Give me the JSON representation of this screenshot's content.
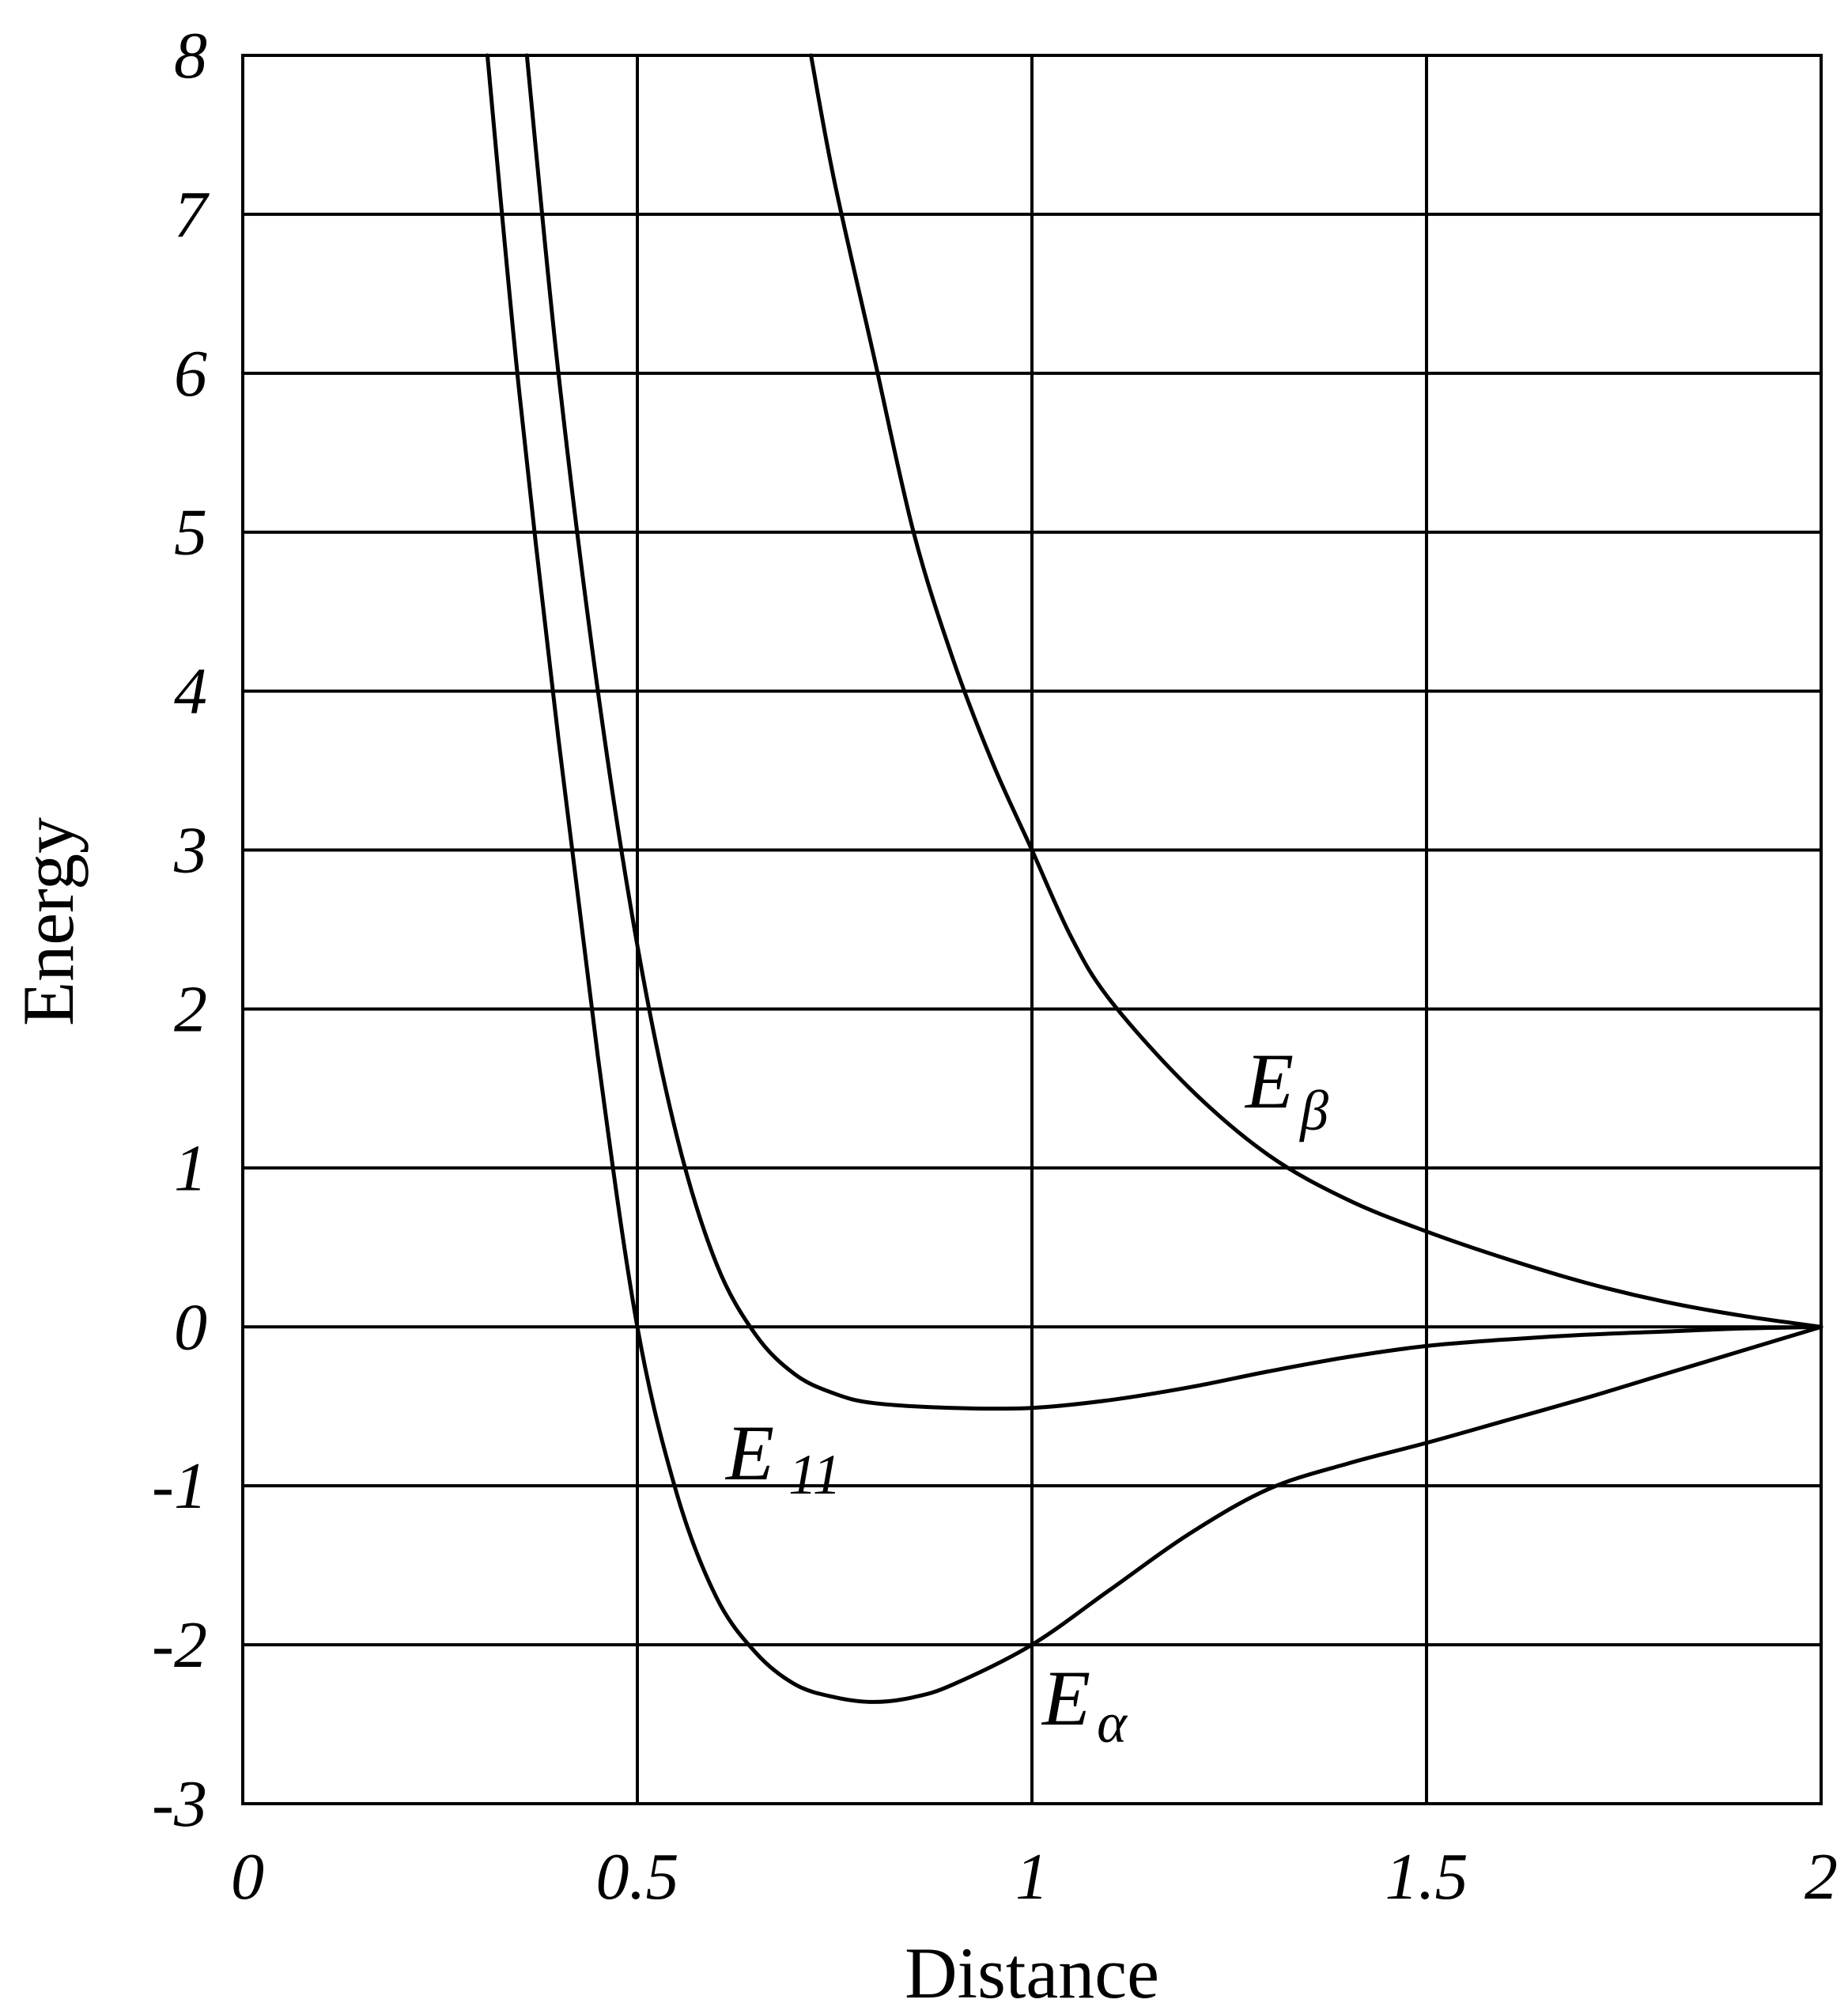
{
  "chart_data": {
    "type": "line",
    "xlabel": "Distance",
    "ylabel": "Energy",
    "xlim": [
      0,
      2
    ],
    "ylim": [
      -3,
      8
    ],
    "x_ticks": [
      0,
      0.5,
      1,
      1.5,
      2
    ],
    "x_tick_labels": [
      "0",
      "0.5",
      "1",
      "1.5",
      "2"
    ],
    "y_ticks": [
      8,
      7,
      6,
      5,
      4,
      3,
      2,
      1,
      0,
      -1,
      -2,
      -3
    ],
    "y_tick_labels": [
      "8",
      "7",
      "6",
      "5",
      "4",
      "3",
      "2",
      "1",
      "0",
      "-1",
      "-2",
      "-3"
    ],
    "grid": true,
    "series": [
      {
        "name": "E_β",
        "label_main": "E",
        "label_sub": "β",
        "x": [
          0.72,
          0.75,
          0.8,
          0.85,
          0.9,
          0.95,
          1.0,
          1.05,
          1.1,
          1.2,
          1.3,
          1.4,
          1.5,
          1.6,
          1.7,
          1.8,
          1.9,
          2.0
        ],
        "y": [
          8.0,
          7.2,
          6.1,
          5.0,
          4.2,
          3.55,
          3.0,
          2.45,
          2.05,
          1.5,
          1.08,
          0.8,
          0.6,
          0.43,
          0.28,
          0.16,
          0.07,
          0.0
        ]
      },
      {
        "name": "E_11",
        "label_main": "E",
        "label_sub": "11",
        "x": [
          0.36,
          0.4,
          0.45,
          0.5,
          0.55,
          0.6,
          0.65,
          0.7,
          0.75,
          0.8,
          0.9,
          1.0,
          1.1,
          1.2,
          1.3,
          1.4,
          1.5,
          1.6,
          1.7,
          1.8,
          1.9,
          2.0
        ],
        "y": [
          8.0,
          6.0,
          4.0,
          2.4,
          1.2,
          0.4,
          -0.05,
          -0.3,
          -0.42,
          -0.48,
          -0.51,
          -0.51,
          -0.46,
          -0.38,
          -0.28,
          -0.19,
          -0.12,
          -0.08,
          -0.05,
          -0.03,
          -0.01,
          0.0
        ]
      },
      {
        "name": "E_α",
        "label_main": "E",
        "label_sub": "α",
        "x": [
          0.31,
          0.35,
          0.4,
          0.45,
          0.5,
          0.55,
          0.6,
          0.65,
          0.7,
          0.75,
          0.8,
          0.85,
          0.9,
          1.0,
          1.1,
          1.2,
          1.3,
          1.4,
          1.5,
          1.6,
          1.7,
          1.8,
          1.9,
          2.0
        ],
        "y": [
          8.0,
          5.9,
          3.7,
          1.7,
          0.0,
          -1.05,
          -1.7,
          -2.05,
          -2.25,
          -2.33,
          -2.36,
          -2.33,
          -2.25,
          -2.0,
          -1.65,
          -1.3,
          -1.02,
          -0.86,
          -0.73,
          -0.59,
          -0.45,
          -0.3,
          -0.15,
          0.0
        ]
      }
    ]
  }
}
